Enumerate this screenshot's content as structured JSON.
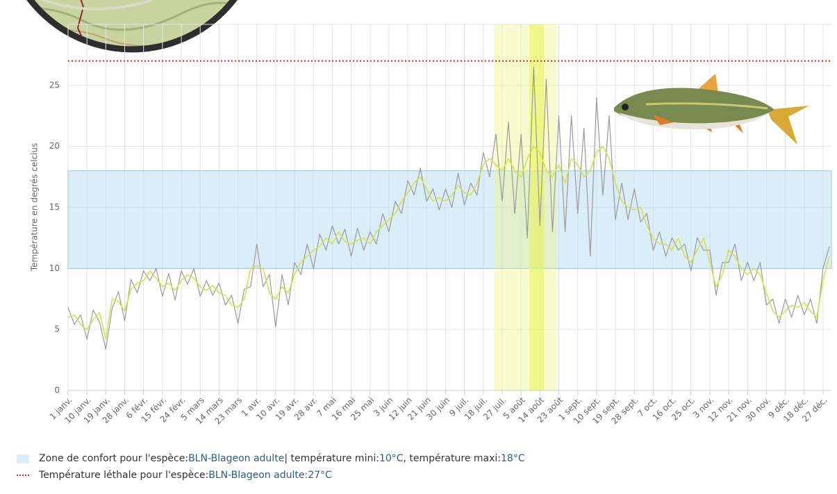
{
  "chart_data": {
    "type": "line",
    "y_label": "Température en degrés celcius",
    "x": [
      1,
      4,
      7,
      10,
      13,
      16,
      19,
      22,
      25,
      28,
      31,
      34,
      37,
      40,
      43,
      46,
      49,
      52,
      55,
      58,
      61,
      64,
      67,
      70,
      73,
      76,
      79,
      82,
      85,
      88,
      91,
      94,
      97,
      100,
      103,
      106,
      109,
      112,
      115,
      118,
      121,
      124,
      127,
      130,
      133,
      136,
      139,
      142,
      145,
      148,
      151,
      154,
      157,
      160,
      163,
      166,
      169,
      172,
      175,
      178,
      181,
      184,
      187,
      190,
      193,
      196,
      199,
      202,
      205,
      208,
      211,
      214,
      217,
      220,
      223,
      226,
      229,
      232,
      235,
      238,
      241,
      244,
      247,
      250,
      253,
      256,
      259,
      262,
      265,
      268,
      271,
      274,
      277,
      280,
      283,
      286,
      289,
      292,
      295,
      298,
      301,
      304,
      307,
      310,
      313,
      316,
      319,
      322,
      325,
      328,
      331,
      334,
      337,
      340,
      343,
      346,
      349,
      352,
      355,
      358,
      361,
      364
    ],
    "series": [
      {
        "color": "#9a9a9a",
        "values": [
          6.8,
          5.4,
          6.2,
          4.2,
          6.6,
          5.6,
          3.4,
          6.7,
          8.1,
          5.7,
          9.1,
          8.0,
          9.8,
          9.0,
          10.0,
          7.7,
          9.6,
          7.4,
          9.8,
          8.7,
          10.0,
          7.7,
          9.0,
          7.8,
          8.8,
          7.0,
          7.8,
          5.5,
          8.3,
          8.5,
          12.0,
          8.5,
          9.5,
          5.2,
          9.5,
          7.0,
          10.5,
          9.5,
          12.0,
          10.0,
          12.8,
          11.5,
          13.5,
          12.0,
          13.2,
          11.0,
          13.3,
          11.5,
          13.0,
          12.0,
          14.5,
          13.0,
          15.5,
          14.5,
          17.2,
          16.0,
          18.2,
          15.5,
          16.5,
          14.8,
          16.5,
          15.0,
          17.8,
          15.2,
          17.0,
          16.0,
          19.5,
          17.5,
          21.0,
          15.5,
          22.0,
          14.5,
          21.0,
          12.5,
          26.5,
          13.5,
          25.5,
          13.0,
          22.5,
          13.0,
          22.5,
          14.5,
          21.5,
          11.0,
          24.0,
          16.0,
          22.5,
          14.0,
          17.0,
          14.0,
          16.5,
          13.8,
          14.5,
          11.5,
          13.0,
          11.0,
          12.5,
          11.5,
          12.0,
          9.8,
          12.5,
          11.5,
          11.5,
          7.8,
          10.5,
          10.5,
          12.0,
          9.0,
          10.5,
          9.0,
          10.5,
          7.0,
          7.5,
          5.5,
          7.5,
          6.0,
          7.8,
          6.2,
          7.5,
          5.5,
          10.0,
          11.8
        ]
      },
      {
        "color": "#d2e447",
        "values": [
          6.0,
          6.2,
          5.4,
          5.0,
          5.8,
          6.4,
          4.2,
          7.5,
          7.3,
          6.5,
          8.3,
          8.8,
          9.0,
          9.8,
          9.2,
          8.5,
          8.8,
          8.2,
          9.0,
          9.5,
          9.2,
          8.5,
          8.2,
          8.6,
          8.0,
          7.8,
          7.0,
          6.8,
          7.5,
          10.0,
          10.2,
          10.0,
          8.0,
          7.5,
          8.5,
          8.0,
          9.5,
          10.5,
          11.0,
          11.5,
          11.8,
          12.5,
          12.0,
          13.0,
          12.2,
          12.0,
          12.3,
          12.5,
          12.0,
          13.0,
          13.5,
          14.0,
          14.5,
          15.5,
          16.2,
          17.0,
          17.5,
          16.5,
          15.5,
          15.8,
          15.5,
          16.0,
          16.8,
          16.2,
          16.0,
          17.0,
          18.5,
          19.0,
          18.5,
          18.0,
          19.0,
          18.0,
          17.5,
          19.0,
          20.0,
          19.5,
          18.0,
          17.5,
          18.5,
          17.0,
          19.0,
          18.5,
          17.5,
          18.0,
          19.5,
          20.0,
          19.0,
          17.0,
          15.5,
          15.0,
          14.8,
          15.0,
          13.5,
          12.5,
          12.0,
          12.0,
          11.5,
          12.5,
          11.0,
          10.5,
          11.5,
          12.5,
          10.5,
          8.5,
          9.5,
          11.5,
          11.0,
          10.0,
          9.5,
          10.0,
          9.5,
          8.0,
          6.5,
          6.0,
          6.5,
          7.0,
          6.8,
          7.2,
          6.5,
          6.0,
          9.0,
          11.0
        ]
      }
    ],
    "xlim": [
      1,
      365
    ],
    "xticks": [
      {
        "value": 1,
        "label": "1 janv."
      },
      {
        "value": 10,
        "label": "10 janv."
      },
      {
        "value": 19,
        "label": "19 janv."
      },
      {
        "value": 28,
        "label": "28 janv."
      },
      {
        "value": 37,
        "label": "6 févr."
      },
      {
        "value": 46,
        "label": "15 févr."
      },
      {
        "value": 55,
        "label": "24 févr."
      },
      {
        "value": 64,
        "label": "5 mars"
      },
      {
        "value": 73,
        "label": "14 mars"
      },
      {
        "value": 82,
        "label": "23 mars"
      },
      {
        "value": 91,
        "label": "1 avr."
      },
      {
        "value": 100,
        "label": "10 avr."
      },
      {
        "value": 109,
        "label": "19 avr."
      },
      {
        "value": 118,
        "label": "28 avr."
      },
      {
        "value": 127,
        "label": "7 mai"
      },
      {
        "value": 136,
        "label": "16 mai"
      },
      {
        "value": 145,
        "label": "25 mai"
      },
      {
        "value": 154,
        "label": "3 juin"
      },
      {
        "value": 163,
        "label": "12 juin"
      },
      {
        "value": 172,
        "label": "21 juin"
      },
      {
        "value": 181,
        "label": "30 juin"
      },
      {
        "value": 190,
        "label": "9 juil."
      },
      {
        "value": 199,
        "label": "18 juil."
      },
      {
        "value": 208,
        "label": "27 juil."
      },
      {
        "value": 217,
        "label": "5 août"
      },
      {
        "value": 226,
        "label": "14 août"
      },
      {
        "value": 235,
        "label": "23 août"
      },
      {
        "value": 244,
        "label": "1 sept."
      },
      {
        "value": 253,
        "label": "10 sept."
      },
      {
        "value": 262,
        "label": "19 sept."
      },
      {
        "value": 271,
        "label": "28 sept."
      },
      {
        "value": 280,
        "label": "7 oct."
      },
      {
        "value": 289,
        "label": "16 oct."
      },
      {
        "value": 298,
        "label": "25 oct."
      },
      {
        "value": 307,
        "label": "3 nov."
      },
      {
        "value": 316,
        "label": "12 nov."
      },
      {
        "value": 325,
        "label": "21 nov."
      },
      {
        "value": 334,
        "label": "30 nov."
      },
      {
        "value": 343,
        "label": "9 déc."
      },
      {
        "value": 352,
        "label": "18 déc."
      },
      {
        "value": 361,
        "label": "27 déc."
      }
    ],
    "ylim": [
      0,
      30
    ],
    "yticks": [
      0,
      5,
      10,
      15,
      20,
      25
    ],
    "grid": true,
    "highlight_bands": [
      {
        "from": 204,
        "to": 234,
        "color": "rgba(236,244,130,0.4)"
      },
      {
        "from": 221,
        "to": 228,
        "color": "rgba(232,244,80,0.55)"
      }
    ],
    "comfort_min": {
      "value": 10,
      "label": "10°C"
    },
    "comfort_max": {
      "value": 18,
      "label": "18°C"
    },
    "comfort_color": "rgba(190,222,244,0.55)",
    "lethal": {
      "value": 27,
      "label": "27°C"
    },
    "lethal_color": "#d62728",
    "legend": {
      "comfort_text": "Zone de confort pour l'espèce:",
      "species": "BLN-Blageon adulte",
      "min_text": "| température mini:",
      "max_text": ", température maxi:",
      "lethal_text": "Température léthale pour l'espèce:",
      "lethal_sep": ":"
    }
  }
}
